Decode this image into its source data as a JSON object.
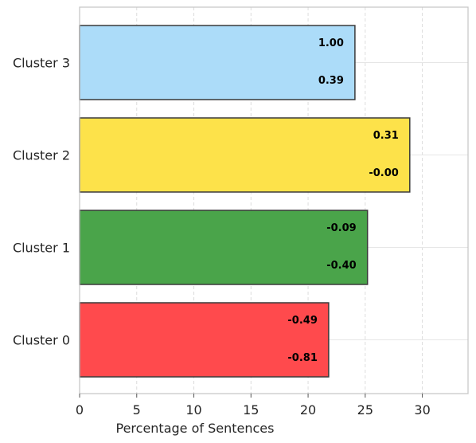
{
  "chart_data": {
    "type": "bar",
    "orientation": "horizontal",
    "categories": [
      "Cluster 0",
      "Cluster 1",
      "Cluster 2",
      "Cluster 3"
    ],
    "values": [
      21.8,
      25.2,
      28.9,
      24.1
    ],
    "bar_colors": [
      "#ff4a4d",
      "#4aa44a",
      "#fde24a",
      "#acdcf9"
    ],
    "bar_annotations": [
      [
        "-0.49",
        "-0.81"
      ],
      [
        "-0.09",
        "-0.40"
      ],
      [
        "0.31",
        "-0.00"
      ],
      [
        "1.00",
        "0.39"
      ]
    ],
    "xlabel": "Percentage of Sentences",
    "ylabel": "",
    "xlim": [
      0,
      34
    ],
    "xticks": [
      "0",
      "5",
      "10",
      "15",
      "20",
      "25",
      "30"
    ],
    "grid": true
  }
}
